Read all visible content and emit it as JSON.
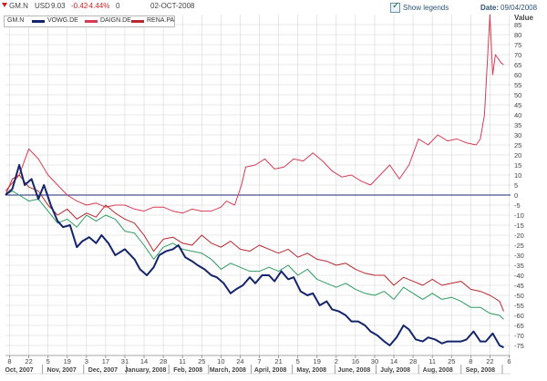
{
  "header": {
    "symbol": "GM.N",
    "currency": "USD",
    "price": "9.03",
    "change": "-0.42",
    "change_pct": "-4.44%",
    "volume": "0",
    "date": "02-OCT-2008",
    "show_legends_label": "Show legends",
    "show_legends_checked": true,
    "date_label": "Date:",
    "date_value": "09/04/2008"
  },
  "colors": {
    "gm": "#14256b",
    "vowg": "#d83c55",
    "daign": "#b8282e",
    "rena": "#2e9c62",
    "grid": "#d6d6d6",
    "zero_line": "#1c2a73",
    "axis_text": "#444444"
  },
  "chart_data": {
    "type": "line",
    "ylabel": "Value",
    "ylim": [
      -80,
      90
    ],
    "yticks": [
      -75,
      -70,
      -65,
      -60,
      -55,
      -50,
      -45,
      -40,
      -35,
      -30,
      -25,
      -20,
      -15,
      -10,
      -5,
      0,
      5,
      10,
      15,
      20,
      25,
      30,
      35,
      40,
      45,
      50,
      55,
      60,
      65,
      70,
      75,
      80,
      85
    ],
    "x_start": "2007-10-05",
    "x_end": "2008-10-07",
    "day_ticks": [
      {
        "date": "2007-10-08",
        "label": "8"
      },
      {
        "date": "2007-10-22",
        "label": "22"
      },
      {
        "date": "2007-11-05",
        "label": "5"
      },
      {
        "date": "2007-11-19",
        "label": "19"
      },
      {
        "date": "2007-12-03",
        "label": "3"
      },
      {
        "date": "2007-12-17",
        "label": "17"
      },
      {
        "date": "2007-12-31",
        "label": "31"
      },
      {
        "date": "2008-01-14",
        "label": "14"
      },
      {
        "date": "2008-01-28",
        "label": "28"
      },
      {
        "date": "2008-02-11",
        "label": "11"
      },
      {
        "date": "2008-02-25",
        "label": "25"
      },
      {
        "date": "2008-03-10",
        "label": "10"
      },
      {
        "date": "2008-03-24",
        "label": "24"
      },
      {
        "date": "2008-04-07",
        "label": "7"
      },
      {
        "date": "2008-04-21",
        "label": "21"
      },
      {
        "date": "2008-05-05",
        "label": "5"
      },
      {
        "date": "2008-05-19",
        "label": "19"
      },
      {
        "date": "2008-06-02",
        "label": "2"
      },
      {
        "date": "2008-06-16",
        "label": "16"
      },
      {
        "date": "2008-06-30",
        "label": "30"
      },
      {
        "date": "2008-07-14",
        "label": "14"
      },
      {
        "date": "2008-07-28",
        "label": "28"
      },
      {
        "date": "2008-08-11",
        "label": "11"
      },
      {
        "date": "2008-08-25",
        "label": "25"
      },
      {
        "date": "2008-09-08",
        "label": "8"
      },
      {
        "date": "2008-09-22",
        "label": "22"
      },
      {
        "date": "2008-10-06",
        "label": "6"
      }
    ],
    "month_labels": [
      {
        "date": "2007-10-15",
        "label": "Oct, 2007"
      },
      {
        "date": "2007-11-15",
        "label": "Nov, 2007"
      },
      {
        "date": "2007-12-15",
        "label": "Dec, 2007"
      },
      {
        "date": "2008-01-15",
        "label": "January, 2008"
      },
      {
        "date": "2008-02-15",
        "label": "Feb, 2008"
      },
      {
        "date": "2008-03-15",
        "label": "March, 2008"
      },
      {
        "date": "2008-04-15",
        "label": "April, 2008"
      },
      {
        "date": "2008-05-15",
        "label": "May, 2008"
      },
      {
        "date": "2008-06-15",
        "label": "June, 2008"
      },
      {
        "date": "2008-07-15",
        "label": "July, 2008"
      },
      {
        "date": "2008-08-15",
        "label": "Aug, 2008"
      },
      {
        "date": "2008-09-15",
        "label": "Sep, 2008"
      }
    ],
    "month_separators": [
      "2007-11-01",
      "2007-12-01",
      "2008-01-01",
      "2008-02-01",
      "2008-03-01",
      "2008-04-01",
      "2008-05-01",
      "2008-06-01",
      "2008-07-01",
      "2008-08-01",
      "2008-09-01",
      "2008-10-01"
    ],
    "series": [
      {
        "name": "GM.N",
        "color": "#14256b",
        "width": 2,
        "x": [
          "2007-10-05",
          "2007-10-10",
          "2007-10-15",
          "2007-10-19",
          "2007-10-24",
          "2007-10-29",
          "2007-11-02",
          "2007-11-07",
          "2007-11-12",
          "2007-11-16",
          "2007-11-21",
          "2007-11-26",
          "2007-11-30",
          "2007-12-05",
          "2007-12-10",
          "2007-12-14",
          "2007-12-19",
          "2007-12-24",
          "2007-12-31",
          "2008-01-07",
          "2008-01-11",
          "2008-01-16",
          "2008-01-21",
          "2008-01-25",
          "2008-01-30",
          "2008-02-04",
          "2008-02-08",
          "2008-02-13",
          "2008-02-18",
          "2008-02-22",
          "2008-02-27",
          "2008-03-03",
          "2008-03-07",
          "2008-03-12",
          "2008-03-17",
          "2008-03-21",
          "2008-03-26",
          "2008-03-31",
          "2008-04-04",
          "2008-04-09",
          "2008-04-14",
          "2008-04-18",
          "2008-04-23",
          "2008-04-28",
          "2008-05-02",
          "2008-05-07",
          "2008-05-12",
          "2008-05-16",
          "2008-05-21",
          "2008-05-26",
          "2008-05-30",
          "2008-06-04",
          "2008-06-09",
          "2008-06-13",
          "2008-06-18",
          "2008-06-23",
          "2008-06-27",
          "2008-07-02",
          "2008-07-07",
          "2008-07-11",
          "2008-07-16",
          "2008-07-21",
          "2008-07-25",
          "2008-07-30",
          "2008-08-04",
          "2008-08-08",
          "2008-08-13",
          "2008-08-18",
          "2008-08-22",
          "2008-08-27",
          "2008-09-01",
          "2008-09-05",
          "2008-09-10",
          "2008-09-15",
          "2008-09-19",
          "2008-09-24",
          "2008-09-29",
          "2008-10-02"
        ],
        "y": [
          0,
          3,
          15,
          5,
          8,
          -2,
          5,
          -5,
          -13,
          -16,
          -15,
          -26,
          -23,
          -21,
          -24,
          -20,
          -24,
          -30,
          -27,
          -32,
          -37,
          -40,
          -36,
          -30,
          -28,
          -27,
          -25,
          -31,
          -33,
          -35,
          -37,
          -40,
          -41,
          -44,
          -49,
          -47,
          -45,
          -41,
          -44,
          -40,
          -40,
          -43,
          -38,
          -42,
          -41,
          -48,
          -50,
          -49,
          -55,
          -53,
          -57,
          -58,
          -60,
          -63,
          -63,
          -65,
          -68,
          -70,
          -73,
          -75,
          -71,
          -65,
          -67,
          -72,
          -73,
          -71,
          -72,
          -74,
          -73,
          -73,
          -73,
          -72,
          -68,
          -73,
          -73,
          -69,
          -75,
          -76
        ]
      },
      {
        "name": "VOWG.DE",
        "color": "#d83c55",
        "width": 1,
        "x": [
          "2007-10-05",
          "2007-10-15",
          "2007-10-22",
          "2007-10-29",
          "2007-11-05",
          "2007-11-12",
          "2007-11-19",
          "2007-11-26",
          "2007-12-03",
          "2007-12-10",
          "2007-12-17",
          "2007-12-24",
          "2007-12-31",
          "2008-01-07",
          "2008-01-14",
          "2008-01-21",
          "2008-01-28",
          "2008-02-04",
          "2008-02-11",
          "2008-02-18",
          "2008-02-25",
          "2008-03-03",
          "2008-03-10",
          "2008-03-14",
          "2008-03-20",
          "2008-03-25",
          "2008-03-28",
          "2008-04-04",
          "2008-04-11",
          "2008-04-18",
          "2008-04-25",
          "2008-05-02",
          "2008-05-09",
          "2008-05-16",
          "2008-05-23",
          "2008-05-30",
          "2008-06-06",
          "2008-06-13",
          "2008-06-20",
          "2008-06-27",
          "2008-07-04",
          "2008-07-11",
          "2008-07-18",
          "2008-07-25",
          "2008-08-01",
          "2008-08-08",
          "2008-08-15",
          "2008-08-22",
          "2008-08-29",
          "2008-09-05",
          "2008-09-12",
          "2008-09-15",
          "2008-09-18",
          "2008-09-22",
          "2008-09-24",
          "2008-09-26",
          "2008-09-30",
          "2008-10-02"
        ],
        "y": [
          2,
          10,
          23,
          18,
          10,
          5,
          0,
          -3,
          -5,
          -4,
          -6,
          -5,
          -5,
          -7,
          -8,
          -6,
          -6,
          -8,
          -9,
          -7,
          -8,
          -8,
          -6,
          -3,
          -5,
          5,
          14,
          15,
          18,
          13,
          14,
          18,
          17,
          21,
          17,
          12,
          9,
          10,
          7,
          5,
          10,
          15,
          8,
          15,
          28,
          25,
          30,
          27,
          28,
          26,
          25,
          28,
          40,
          95,
          60,
          70,
          66,
          65
        ]
      },
      {
        "name": "DAIGN.DE",
        "color": "#b8282e",
        "width": 1,
        "x": [
          "2007-10-05",
          "2007-10-10",
          "2007-10-15",
          "2007-10-22",
          "2007-10-29",
          "2007-11-05",
          "2007-11-12",
          "2007-11-19",
          "2007-11-26",
          "2007-12-03",
          "2007-12-10",
          "2007-12-17",
          "2007-12-24",
          "2007-12-31",
          "2008-01-07",
          "2008-01-14",
          "2008-01-21",
          "2008-01-28",
          "2008-02-04",
          "2008-02-11",
          "2008-02-18",
          "2008-02-25",
          "2008-03-03",
          "2008-03-10",
          "2008-03-17",
          "2008-03-24",
          "2008-03-31",
          "2008-04-07",
          "2008-04-14",
          "2008-04-21",
          "2008-04-28",
          "2008-05-05",
          "2008-05-12",
          "2008-05-19",
          "2008-05-26",
          "2008-06-02",
          "2008-06-09",
          "2008-06-16",
          "2008-06-23",
          "2008-06-30",
          "2008-07-07",
          "2008-07-14",
          "2008-07-21",
          "2008-07-28",
          "2008-08-04",
          "2008-08-11",
          "2008-08-18",
          "2008-08-25",
          "2008-09-01",
          "2008-09-08",
          "2008-09-15",
          "2008-09-22",
          "2008-09-29",
          "2008-10-02"
        ],
        "y": [
          0,
          8,
          10,
          4,
          2,
          -5,
          -10,
          -7,
          -12,
          -9,
          -11,
          -5,
          -9,
          -12,
          -14,
          -20,
          -28,
          -22,
          -21,
          -24,
          -25,
          -20,
          -24,
          -26,
          -23,
          -27,
          -28,
          -25,
          -27,
          -29,
          -27,
          -31,
          -29,
          -32,
          -33,
          -35,
          -34,
          -37,
          -39,
          -40,
          -40,
          -45,
          -41,
          -43,
          -45,
          -42,
          -45,
          -44,
          -43,
          -47,
          -48,
          -50,
          -53,
          -58
        ]
      },
      {
        "name": "RENA.PA",
        "color": "#2e9c62",
        "width": 1,
        "x": [
          "2007-10-05",
          "2007-10-10",
          "2007-10-15",
          "2007-10-22",
          "2007-10-29",
          "2007-11-05",
          "2007-11-12",
          "2007-11-19",
          "2007-11-26",
          "2007-12-03",
          "2007-12-10",
          "2007-12-17",
          "2007-12-24",
          "2007-12-31",
          "2008-01-07",
          "2008-01-14",
          "2008-01-21",
          "2008-01-28",
          "2008-02-04",
          "2008-02-11",
          "2008-02-18",
          "2008-02-25",
          "2008-03-03",
          "2008-03-10",
          "2008-03-17",
          "2008-03-24",
          "2008-03-31",
          "2008-04-07",
          "2008-04-14",
          "2008-04-21",
          "2008-04-28",
          "2008-05-05",
          "2008-05-12",
          "2008-05-19",
          "2008-05-26",
          "2008-06-02",
          "2008-06-09",
          "2008-06-16",
          "2008-06-23",
          "2008-06-30",
          "2008-07-07",
          "2008-07-14",
          "2008-07-21",
          "2008-07-28",
          "2008-08-04",
          "2008-08-11",
          "2008-08-18",
          "2008-08-25",
          "2008-09-01",
          "2008-09-08",
          "2008-09-15",
          "2008-09-22",
          "2008-09-29",
          "2008-10-02"
        ],
        "y": [
          0,
          2,
          0,
          -3,
          -2,
          -8,
          -14,
          -12,
          -16,
          -10,
          -13,
          -10,
          -12,
          -18,
          -19,
          -25,
          -32,
          -26,
          -24,
          -27,
          -28,
          -29,
          -32,
          -37,
          -34,
          -36,
          -38,
          -38,
          -36,
          -38,
          -35,
          -40,
          -37,
          -42,
          -44,
          -46,
          -44,
          -47,
          -49,
          -50,
          -48,
          -52,
          -46,
          -49,
          -52,
          -49,
          -52,
          -51,
          -53,
          -56,
          -56,
          -59,
          -60,
          -62
        ]
      }
    ]
  }
}
